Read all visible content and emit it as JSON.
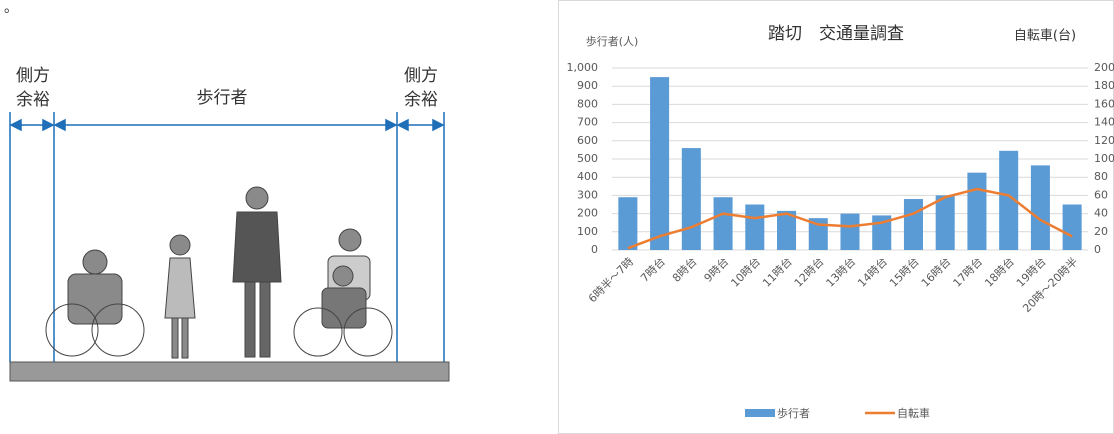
{
  "diagram": {
    "note": "。",
    "left_margin": [
      "側方",
      "余裕"
    ],
    "center": "歩行者",
    "right_margin": [
      "側方",
      "余裕"
    ]
  },
  "chart_data": {
    "type": "bar_line",
    "title": "踏切　交通量調査",
    "ylabel": "歩行者(人)",
    "y2label": "自転車(台)",
    "categories": [
      "6時半～7時",
      "7時台",
      "8時台",
      "9時台",
      "10時台",
      "11時台",
      "12時台",
      "13時台",
      "14時台",
      "15時台",
      "16時台",
      "17時台",
      "18時台",
      "19時台",
      "20時～20時半"
    ],
    "series": [
      {
        "name": "歩行者",
        "type": "bar",
        "color": "#5b9bd5",
        "values": [
          290,
          950,
          560,
          290,
          250,
          215,
          175,
          200,
          190,
          280,
          300,
          425,
          545,
          465,
          250
        ]
      },
      {
        "name": "自転車",
        "type": "line",
        "axis": "y2",
        "color": "#ed7d31",
        "values": [
          2,
          15,
          25,
          40,
          35,
          40,
          28,
          26,
          30,
          40,
          58,
          67,
          60,
          33,
          15
        ]
      }
    ],
    "ylim": [
      0,
      1000
    ],
    "yticks": [
      0,
      100,
      200,
      300,
      400,
      500,
      600,
      700,
      800,
      900,
      {
        "value": 1000,
        "label": "1,000"
      }
    ],
    "y2lim": [
      0,
      200
    ],
    "y2ticks": [
      0,
      20,
      40,
      60,
      80,
      100,
      120,
      140,
      160,
      180,
      200
    ],
    "grid": true,
    "legend": "bottom"
  }
}
